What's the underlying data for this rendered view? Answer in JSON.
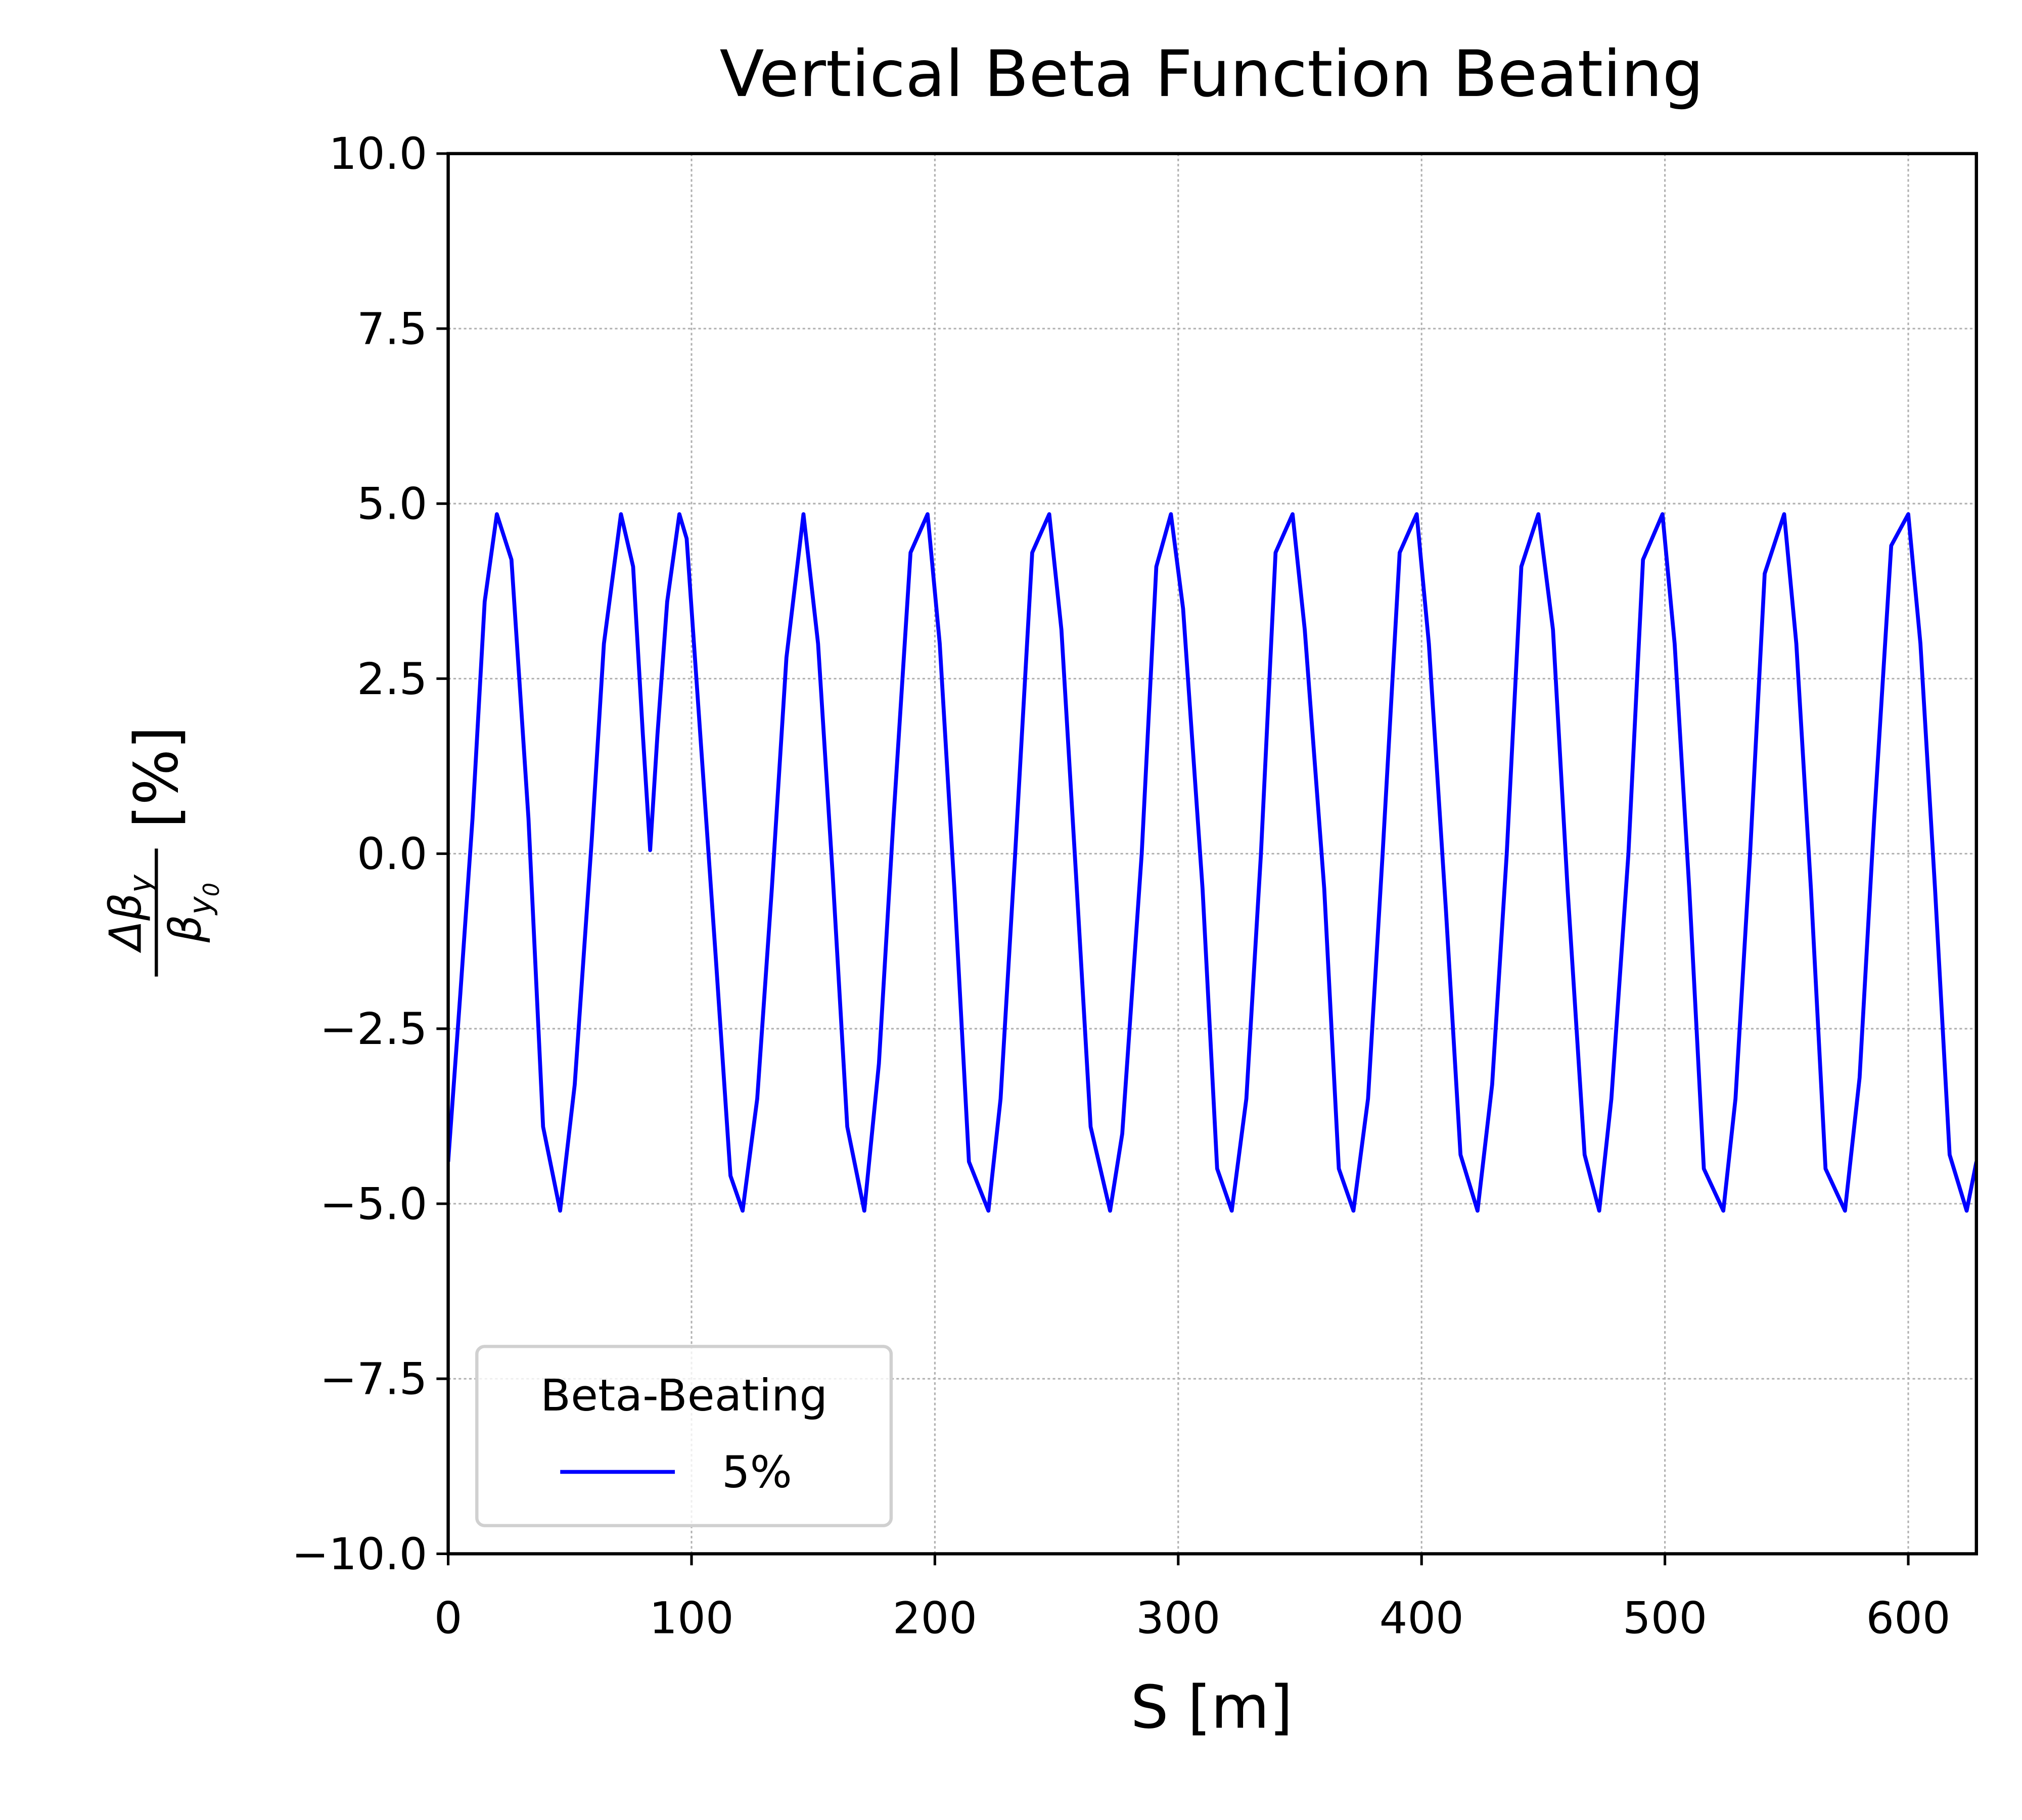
{
  "chart_data": {
    "type": "line",
    "title": "Vertical Beta Function Beating",
    "x_label": "S [m]",
    "y_label": {
      "numerator": {
        "text": "Δβ",
        "sub": "y"
      },
      "denominator": {
        "text": "β",
        "sub": "y",
        "subsub": "0"
      },
      "unit": "[%]"
    },
    "x": [
      0,
      5,
      10,
      15,
      20,
      26,
      33,
      39,
      46,
      52,
      59,
      64,
      71,
      76,
      80,
      83,
      86,
      90,
      95,
      98,
      104,
      110,
      116,
      121,
      127,
      133,
      139,
      146,
      152,
      158,
      164,
      171,
      177,
      183,
      190,
      197,
      202,
      208,
      214,
      222,
      227,
      233,
      240,
      247,
      252,
      258,
      264,
      272,
      277,
      285,
      291,
      297,
      302,
      310,
      316,
      322,
      328,
      334,
      340,
      347,
      352,
      360,
      366,
      372,
      378,
      384,
      391,
      398,
      403,
      410,
      416,
      423,
      429,
      435,
      441,
      448,
      454,
      460,
      467,
      473,
      478,
      485,
      491,
      499,
      504,
      510,
      516,
      524,
      529,
      535,
      541,
      549,
      554,
      560,
      566,
      574,
      580,
      586,
      593,
      600,
      605,
      611,
      617,
      624,
      628
    ],
    "series": [
      {
        "name": "5%",
        "color": "#0000ff",
        "values": [
          -4.4,
          -2.0,
          0.5,
          3.6,
          4.85,
          4.2,
          0.5,
          -3.9,
          -5.1,
          -3.3,
          0.2,
          3.0,
          4.85,
          4.1,
          1.7,
          0.05,
          1.7,
          3.6,
          4.85,
          4.5,
          1.5,
          -1.5,
          -4.6,
          -5.1,
          -3.5,
          -0.5,
          2.8,
          4.85,
          3.0,
          -0.3,
          -3.9,
          -5.1,
          -3.0,
          0.5,
          4.3,
          4.85,
          3.0,
          -0.5,
          -4.4,
          -5.1,
          -3.5,
          0,
          4.3,
          4.85,
          3.2,
          -0.3,
          -3.9,
          -5.1,
          -4.0,
          0,
          4.1,
          4.85,
          3.5,
          -0.5,
          -4.5,
          -5.1,
          -3.5,
          0,
          4.3,
          4.85,
          3.2,
          -0.5,
          -4.5,
          -5.1,
          -3.5,
          0,
          4.3,
          4.85,
          3.0,
          -0.8,
          -4.3,
          -5.1,
          -3.3,
          0,
          4.1,
          4.85,
          3.2,
          -0.5,
          -4.3,
          -5.1,
          -3.5,
          0,
          4.2,
          4.85,
          3.0,
          -0.5,
          -4.5,
          -5.1,
          -3.5,
          0,
          4.0,
          4.85,
          3.0,
          -0.5,
          -4.5,
          -5.1,
          -3.2,
          0.5,
          4.4,
          4.85,
          3.0,
          -0.5,
          -4.3,
          -5.1,
          -4.4
        ]
      }
    ],
    "legend_title": "Beta-Beating",
    "legend_loc": "lower left",
    "xlim": [
      0,
      628
    ],
    "ylim": [
      -10,
      10
    ],
    "xticks": [
      0,
      100,
      200,
      300,
      400,
      500,
      600
    ],
    "yticks": [
      {
        "value": -10,
        "label": "−10.0"
      },
      {
        "value": -7.5,
        "label": "−7.5"
      },
      {
        "value": -5,
        "label": "−5.0"
      },
      {
        "value": -2.5,
        "label": "−2.5"
      },
      {
        "value": 0,
        "label": "0.0"
      },
      2.5,
      {
        "value": 5,
        "label": "5.0"
      },
      7.5,
      {
        "value": 10,
        "label": "10.0"
      }
    ],
    "grid": true
  }
}
